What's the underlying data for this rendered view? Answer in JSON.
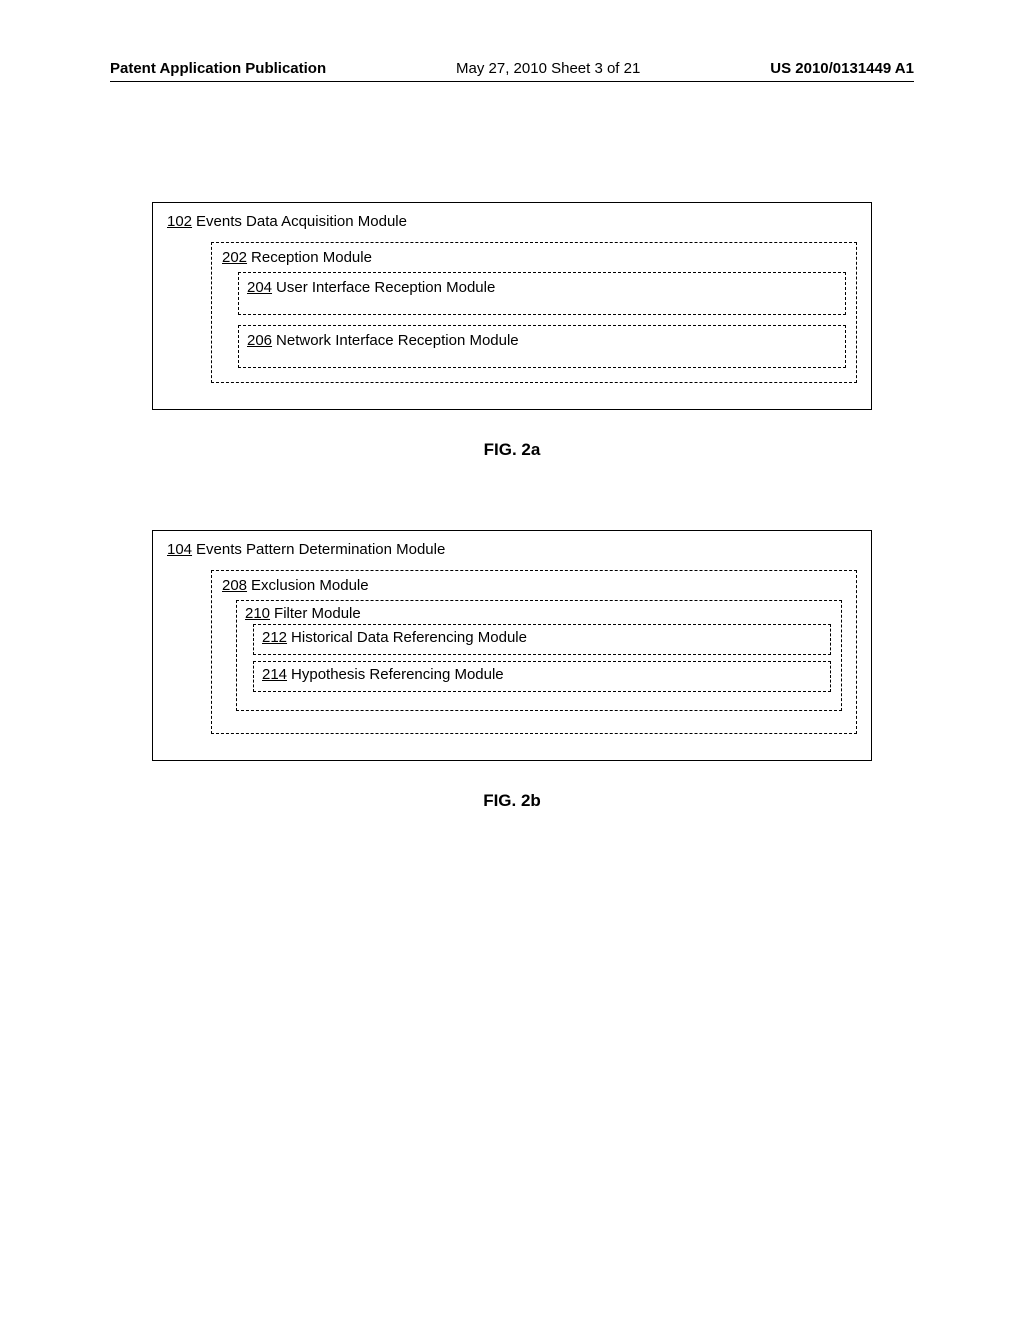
{
  "header": {
    "left": "Patent Application Publication",
    "center": "May 27, 2010  Sheet 3 of 21",
    "right": "US 2010/0131449 A1"
  },
  "fig2a": {
    "outer_ref": "102",
    "outer_label": "Events Data Acquisition Module",
    "mid_ref": "202",
    "mid_label": "Reception Module",
    "inner1_ref": "204",
    "inner1_label": "User Interface Reception Module",
    "inner2_ref": "206",
    "inner2_label": "Network Interface Reception Module",
    "caption": "FIG. 2a"
  },
  "fig2b": {
    "outer_ref": "104",
    "outer_label": "Events Pattern Determination Module",
    "mid_ref": "208",
    "mid_label": "Exclusion Module",
    "lvl2_ref": "210",
    "lvl2_label": "Filter Module",
    "inner1_ref": "212",
    "inner1_label": "Historical Data Referencing Module",
    "inner2_ref": "214",
    "inner2_label": "Hypothesis Referencing Module",
    "caption": "FIG. 2b"
  }
}
